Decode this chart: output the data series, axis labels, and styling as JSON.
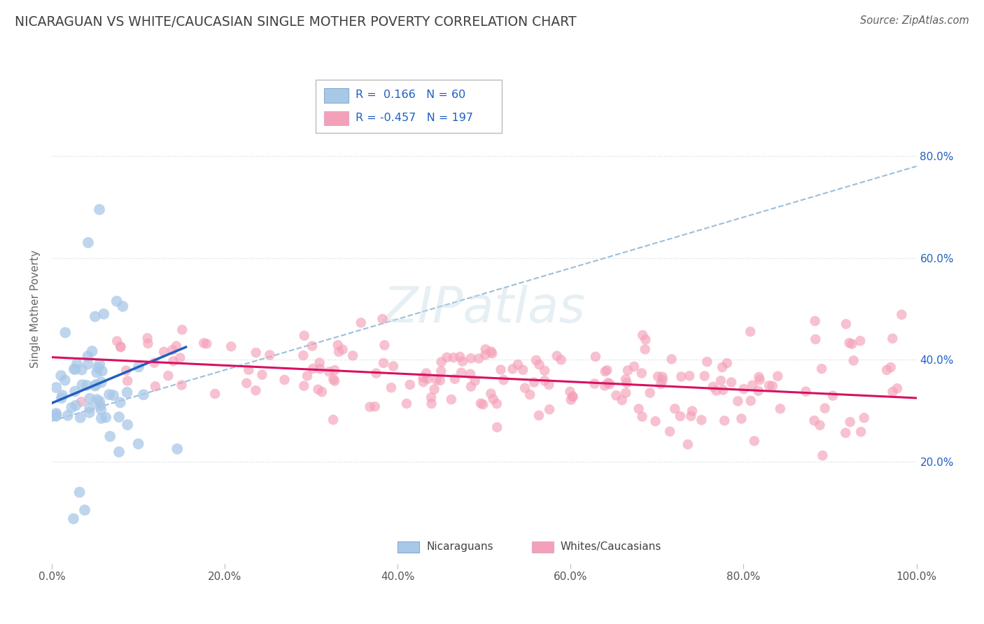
{
  "title": "NICARAGUAN VS WHITE/CAUCASIAN SINGLE MOTHER POVERTY CORRELATION CHART",
  "source": "Source: ZipAtlas.com",
  "ylabel": "Single Mother Poverty",
  "watermark": "ZIPatlas",
  "legend_blue_R": "0.166",
  "legend_blue_N": "60",
  "legend_pink_R": "-0.457",
  "legend_pink_N": "197",
  "blue_color": "#a8c8e8",
  "pink_color": "#f4a0b8",
  "blue_line_color": "#2060c0",
  "pink_line_color": "#d81060",
  "dashed_line_color": "#90b8d8",
  "legend_text_color": "#2060c0",
  "title_color": "#404040",
  "source_color": "#606060",
  "grid_color": "#d0d8e0",
  "background_color": "#ffffff",
  "xlim": [
    0.0,
    1.0
  ],
  "ylim": [
    0.0,
    1.0
  ],
  "x_ticks": [
    0.0,
    0.2,
    0.4,
    0.6,
    0.8,
    1.0
  ],
  "x_tick_labels": [
    "0.0%",
    "20.0%",
    "40.0%",
    "60.0%",
    "80.0%",
    "100.0%"
  ],
  "y_tick_values": [
    0.2,
    0.4,
    0.6,
    0.8
  ],
  "right_y_tick_labels": [
    "20.0%",
    "40.0%",
    "60.0%",
    "80.0%"
  ],
  "blue_line_x0": 0.0,
  "blue_line_x1": 0.155,
  "blue_line_y0": 0.315,
  "blue_line_y1": 0.425,
  "pink_line_x0": 0.0,
  "pink_line_x1": 1.0,
  "pink_line_y0": 0.405,
  "pink_line_y1": 0.325,
  "dash_line_x0": 0.0,
  "dash_line_x1": 1.0,
  "dash_line_y0": 0.28,
  "dash_line_y1": 0.78
}
